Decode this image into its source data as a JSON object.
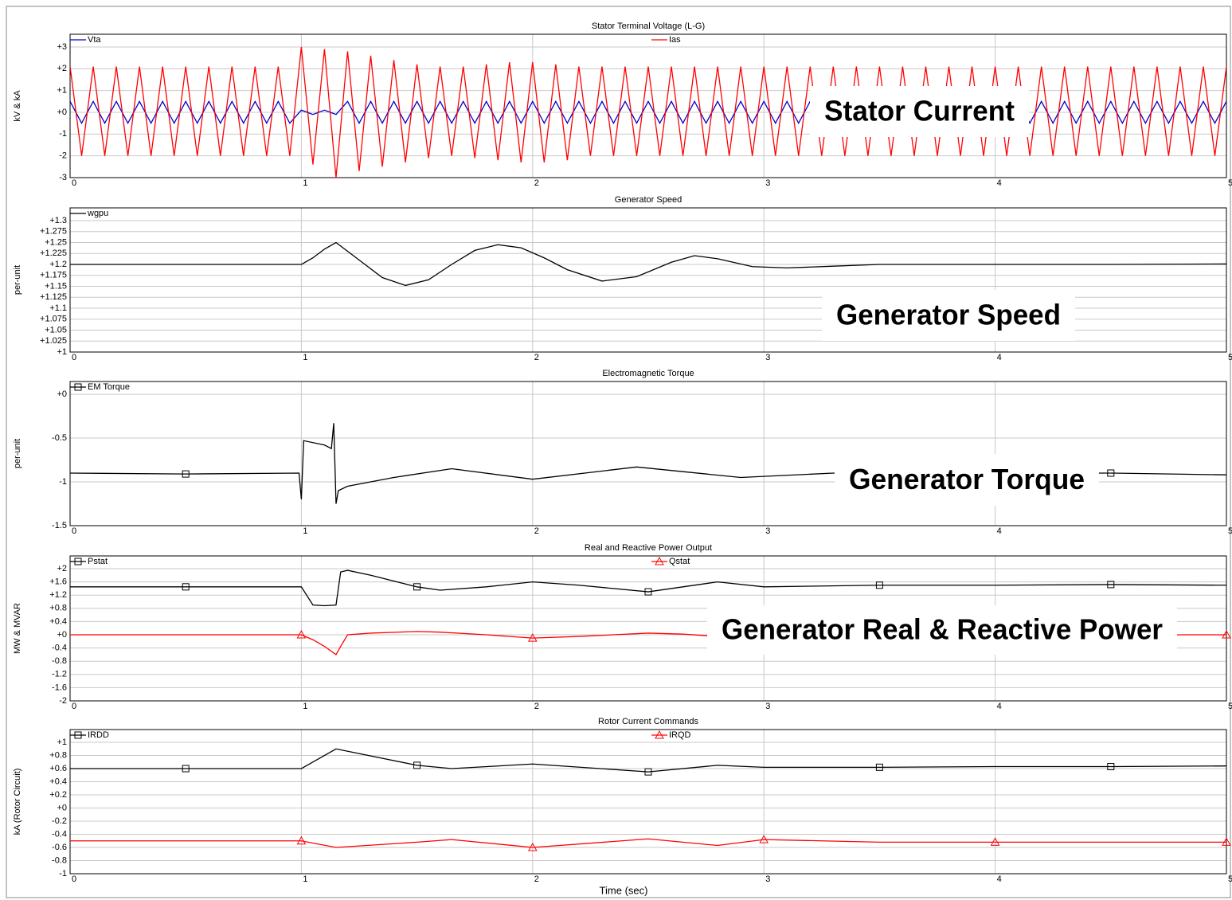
{
  "chart_data": [
    {
      "type": "line",
      "title": "Stator Terminal Voltage (L-G)",
      "ylabel": "kV & kA",
      "annotation": "Stator Current",
      "xlim": [
        0,
        5
      ],
      "xticks": [
        0,
        1,
        2,
        3,
        4,
        5
      ],
      "ylim": [
        -3,
        3
      ],
      "yticks": [
        {
          "value": 3,
          "label": "+3"
        },
        {
          "value": 2,
          "label": "+2"
        },
        {
          "value": 1,
          "label": "+1"
        },
        {
          "value": 0,
          "label": "+0"
        },
        -1,
        -2,
        -3
      ],
      "grid": true,
      "x": [
        0,
        0.05,
        0.1,
        0.15,
        0.2,
        0.25,
        0.3,
        0.35,
        0.4,
        0.45,
        0.5,
        0.55,
        0.6,
        0.65,
        0.7,
        0.75,
        0.8,
        0.85,
        0.9,
        0.95,
        1,
        1.05,
        1.1,
        1.15,
        1.2,
        1.25,
        1.3,
        1.35,
        1.4,
        1.45,
        1.5,
        1.55,
        1.6,
        1.65,
        1.7,
        1.75,
        1.8,
        1.85,
        1.9,
        1.95,
        2,
        2.05,
        2.1,
        2.15,
        2.2,
        2.25,
        2.3,
        2.35,
        2.4,
        2.45,
        2.5,
        2.55,
        2.6,
        2.65,
        2.7,
        2.75,
        2.8,
        2.85,
        2.9,
        2.95,
        3,
        3.05,
        3.1,
        3.15,
        3.2,
        3.25,
        3.3,
        3.35,
        3.4,
        3.45,
        3.5,
        3.55,
        3.6,
        3.65,
        3.7,
        3.75,
        3.8,
        3.85,
        3.9,
        3.95,
        4,
        4.05,
        4.1,
        4.15,
        4.2,
        4.25,
        4.3,
        4.35,
        4.4,
        4.45,
        4.5,
        4.55,
        4.6,
        4.65,
        4.7,
        4.75,
        4.8,
        4.85,
        4.9,
        4.95,
        5
      ],
      "series": [
        {
          "name": "Vta",
          "color": "#0000cc",
          "values": [
            0.5,
            -0.5,
            0.5,
            -0.5,
            0.5,
            -0.5,
            0.5,
            -0.5,
            0.5,
            -0.5,
            0.5,
            -0.5,
            0.5,
            -0.5,
            0.5,
            -0.5,
            0.5,
            -0.5,
            0.5,
            -0.5,
            0.1,
            -0.1,
            0.1,
            -0.1,
            0.5,
            -0.5,
            0.5,
            -0.5,
            0.5,
            -0.5,
            0.5,
            -0.5,
            0.5,
            -0.5,
            0.5,
            -0.5,
            0.5,
            -0.5,
            0.5,
            -0.5,
            0.5,
            -0.5,
            0.5,
            -0.5,
            0.5,
            -0.5,
            0.5,
            -0.5,
            0.5,
            -0.5,
            0.5,
            -0.5,
            0.5,
            -0.5,
            0.5,
            -0.5,
            0.5,
            -0.5,
            0.5,
            -0.5,
            0.5,
            -0.5,
            0.5,
            -0.5,
            0.5,
            -0.5,
            0.5,
            -0.5,
            0.5,
            -0.5,
            0.5,
            -0.5,
            0.5,
            -0.5,
            0.5,
            -0.5,
            0.5,
            -0.5,
            0.5,
            -0.5,
            0.5,
            -0.5,
            0.5,
            -0.5,
            0.5,
            -0.5,
            0.5,
            -0.5,
            0.5,
            -0.5,
            0.5,
            -0.5,
            0.5,
            -0.5,
            0.5,
            -0.5,
            0.5,
            -0.5,
            0.5,
            -0.5,
            0.5
          ]
        },
        {
          "name": "Ias",
          "color": "#ff0000",
          "values": [
            2.1,
            -2,
            2.1,
            -2,
            2.1,
            -2,
            2.1,
            -2,
            2.1,
            -2,
            2.1,
            -2,
            2.1,
            -2,
            2.1,
            -2,
            2.1,
            -2,
            2.1,
            -2,
            3,
            -2.4,
            2.9,
            -3,
            2.8,
            -2.7,
            2.6,
            -2.5,
            2.4,
            -2.3,
            2.2,
            -2.1,
            2.1,
            -2,
            2.1,
            -2.1,
            2.2,
            -2.2,
            2.3,
            -2.3,
            2.3,
            -2.3,
            2.2,
            -2.2,
            2.1,
            -2,
            2.1,
            -2,
            2.1,
            -2,
            2.1,
            -2,
            2.1,
            -2,
            2.1,
            -2,
            2.1,
            -2,
            2.1,
            -2,
            2.1,
            -2,
            2.1,
            -2,
            2.1,
            -2,
            2.1,
            -2,
            2.1,
            -2,
            2.1,
            -2,
            2.1,
            -2,
            2.1,
            -2,
            2.1,
            -2,
            2.1,
            -2,
            2.1,
            -2,
            2.1,
            -2,
            2.1,
            -2,
            2.1,
            -2,
            2.1,
            -2,
            2.1,
            -2,
            2.1,
            -2,
            2.1,
            -2,
            2.1,
            -2,
            2.1,
            -2,
            2.1
          ]
        }
      ]
    },
    {
      "type": "line",
      "title": "Generator Speed",
      "ylabel": "per-unit",
      "annotation": "Generator Speed",
      "xlim": [
        0,
        5
      ],
      "xticks": [
        0,
        1,
        2,
        3,
        4,
        5
      ],
      "ylim": [
        1,
        1.3
      ],
      "yticks": [
        {
          "value": 1.3,
          "label": "+1.3"
        },
        {
          "value": 1.275,
          "label": "+1.275"
        },
        {
          "value": 1.25,
          "label": "+1.25"
        },
        {
          "value": 1.225,
          "label": "+1.225"
        },
        {
          "value": 1.2,
          "label": "+1.2"
        },
        {
          "value": 1.175,
          "label": "+1.175"
        },
        {
          "value": 1.15,
          "label": "+1.15"
        },
        {
          "value": 1.125,
          "label": "+1.125"
        },
        {
          "value": 1.1,
          "label": "+1.1"
        },
        {
          "value": 1.075,
          "label": "+1.075"
        },
        {
          "value": 1.05,
          "label": "+1.05"
        },
        {
          "value": 1.025,
          "label": "+1.025"
        },
        {
          "value": 1,
          "label": "+1"
        }
      ],
      "grid": true,
      "x": [
        0,
        0.5,
        1,
        1.05,
        1.1,
        1.15,
        1.25,
        1.35,
        1.45,
        1.55,
        1.65,
        1.75,
        1.85,
        1.95,
        2.05,
        2.15,
        2.3,
        2.45,
        2.6,
        2.7,
        2.8,
        2.95,
        3.1,
        3.3,
        3.5,
        4,
        4.5,
        5
      ],
      "series": [
        {
          "name": "wgpu",
          "color": "#000000",
          "values": [
            1.2,
            1.2,
            1.2,
            1.215,
            1.235,
            1.25,
            1.21,
            1.17,
            1.152,
            1.165,
            1.2,
            1.232,
            1.245,
            1.238,
            1.215,
            1.188,
            1.162,
            1.172,
            1.205,
            1.22,
            1.213,
            1.195,
            1.192,
            1.196,
            1.2,
            1.2,
            1.2,
            1.201
          ]
        }
      ]
    },
    {
      "type": "line",
      "title": "Electromagnetic Torque",
      "ylabel": "per-unit",
      "annotation": "Generator Torque",
      "xlim": [
        0,
        5
      ],
      "xticks": [
        0,
        1,
        2,
        3,
        4,
        5
      ],
      "ylim": [
        -1.5,
        0
      ],
      "yticks": [
        {
          "value": 0,
          "label": "+0"
        },
        -0.5,
        -1,
        -1.5
      ],
      "grid": true,
      "x": [
        0,
        0.5,
        0.99,
        1,
        1.01,
        1.1,
        1.13,
        1.14,
        1.15,
        1.16,
        1.2,
        1.4,
        1.65,
        2,
        2.45,
        2.9,
        3.3,
        4,
        4.5,
        5
      ],
      "series": [
        {
          "name": "EM Torque",
          "color": "#000000",
          "marker": "square",
          "values": [
            -0.9,
            -0.91,
            -0.9,
            -1.2,
            -0.53,
            -0.58,
            -0.62,
            -0.33,
            -1.25,
            -1.1,
            -1.05,
            -0.95,
            -0.85,
            -0.97,
            -0.83,
            -0.95,
            -0.9,
            -0.9,
            -0.9,
            -0.92
          ]
        }
      ]
    },
    {
      "type": "line",
      "title": "Real and Reactive Power Output",
      "ylabel": "MW & MVAR",
      "annotation": "Generator Real & Reactive Power",
      "xlim": [
        0,
        5
      ],
      "xticks": [
        0,
        1,
        2,
        3,
        4,
        5
      ],
      "ylim": [
        -2,
        2
      ],
      "yticks": [
        {
          "value": 2,
          "label": "+2"
        },
        {
          "value": 1.6,
          "label": "+1.6"
        },
        {
          "value": 1.2,
          "label": "+1.2"
        },
        {
          "value": 0.8,
          "label": "+0.8"
        },
        {
          "value": 0.4,
          "label": "+0.4"
        },
        {
          "value": 0,
          "label": "+0"
        },
        -0.4,
        -0.8,
        -1.2,
        -1.6,
        -2
      ],
      "grid": true,
      "x": [
        0,
        0.5,
        0.99,
        1,
        1.05,
        1.1,
        1.15,
        1.17,
        1.2,
        1.3,
        1.5,
        1.6,
        1.8,
        2,
        2.2,
        2.5,
        2.65,
        2.8,
        3,
        3.5,
        4,
        4.5,
        5
      ],
      "series": [
        {
          "name": "Pstat",
          "color": "#000000",
          "marker": "square",
          "values": [
            1.45,
            1.45,
            1.45,
            1.45,
            0.9,
            0.88,
            0.9,
            1.9,
            1.95,
            1.8,
            1.45,
            1.35,
            1.45,
            1.6,
            1.5,
            1.3,
            1.45,
            1.6,
            1.45,
            1.5,
            1.5,
            1.52,
            1.5
          ]
        },
        {
          "name": "Qstat",
          "color": "#ff0000",
          "marker": "triangle",
          "values": [
            0,
            0,
            0,
            0,
            -0.15,
            -0.35,
            -0.6,
            -0.35,
            0,
            0.05,
            0.1,
            0.08,
            0,
            -0.1,
            -0.05,
            0.05,
            0.02,
            -0.05,
            0,
            0,
            0,
            0,
            0
          ]
        }
      ]
    },
    {
      "type": "line",
      "title": "Rotor Current Commands",
      "ylabel": "kA (Rotor Circuit)",
      "xlabel": "Time (sec)",
      "xlim": [
        0,
        5
      ],
      "xticks": [
        0,
        1,
        2,
        3,
        4,
        5
      ],
      "ylim": [
        -1,
        1
      ],
      "yticks": [
        {
          "value": 1,
          "label": "+1"
        },
        {
          "value": 0.8,
          "label": "+0.8"
        },
        {
          "value": 0.6,
          "label": "+0.6"
        },
        {
          "value": 0.4,
          "label": "+0.4"
        },
        {
          "value": 0.2,
          "label": "+0.2"
        },
        {
          "value": 0,
          "label": "+0"
        },
        -0.2,
        -0.4,
        -0.6,
        -0.8,
        -1
      ],
      "grid": true,
      "x": [
        0,
        0.5,
        1,
        1.15,
        1.5,
        1.65,
        2,
        2.5,
        2.8,
        3,
        3.5,
        4,
        4.5,
        5
      ],
      "series": [
        {
          "name": "IRDD",
          "color": "#000000",
          "marker": "square",
          "values": [
            0.6,
            0.6,
            0.6,
            0.9,
            0.65,
            0.6,
            0.67,
            0.55,
            0.65,
            0.62,
            0.62,
            0.63,
            0.63,
            0.64
          ]
        },
        {
          "name": "IRQD",
          "color": "#ff0000",
          "marker": "triangle",
          "values": [
            -0.5,
            -0.5,
            -0.5,
            -0.6,
            -0.52,
            -0.48,
            -0.6,
            -0.47,
            -0.57,
            -0.48,
            -0.52,
            -0.52,
            -0.52,
            -0.52
          ]
        }
      ]
    }
  ]
}
